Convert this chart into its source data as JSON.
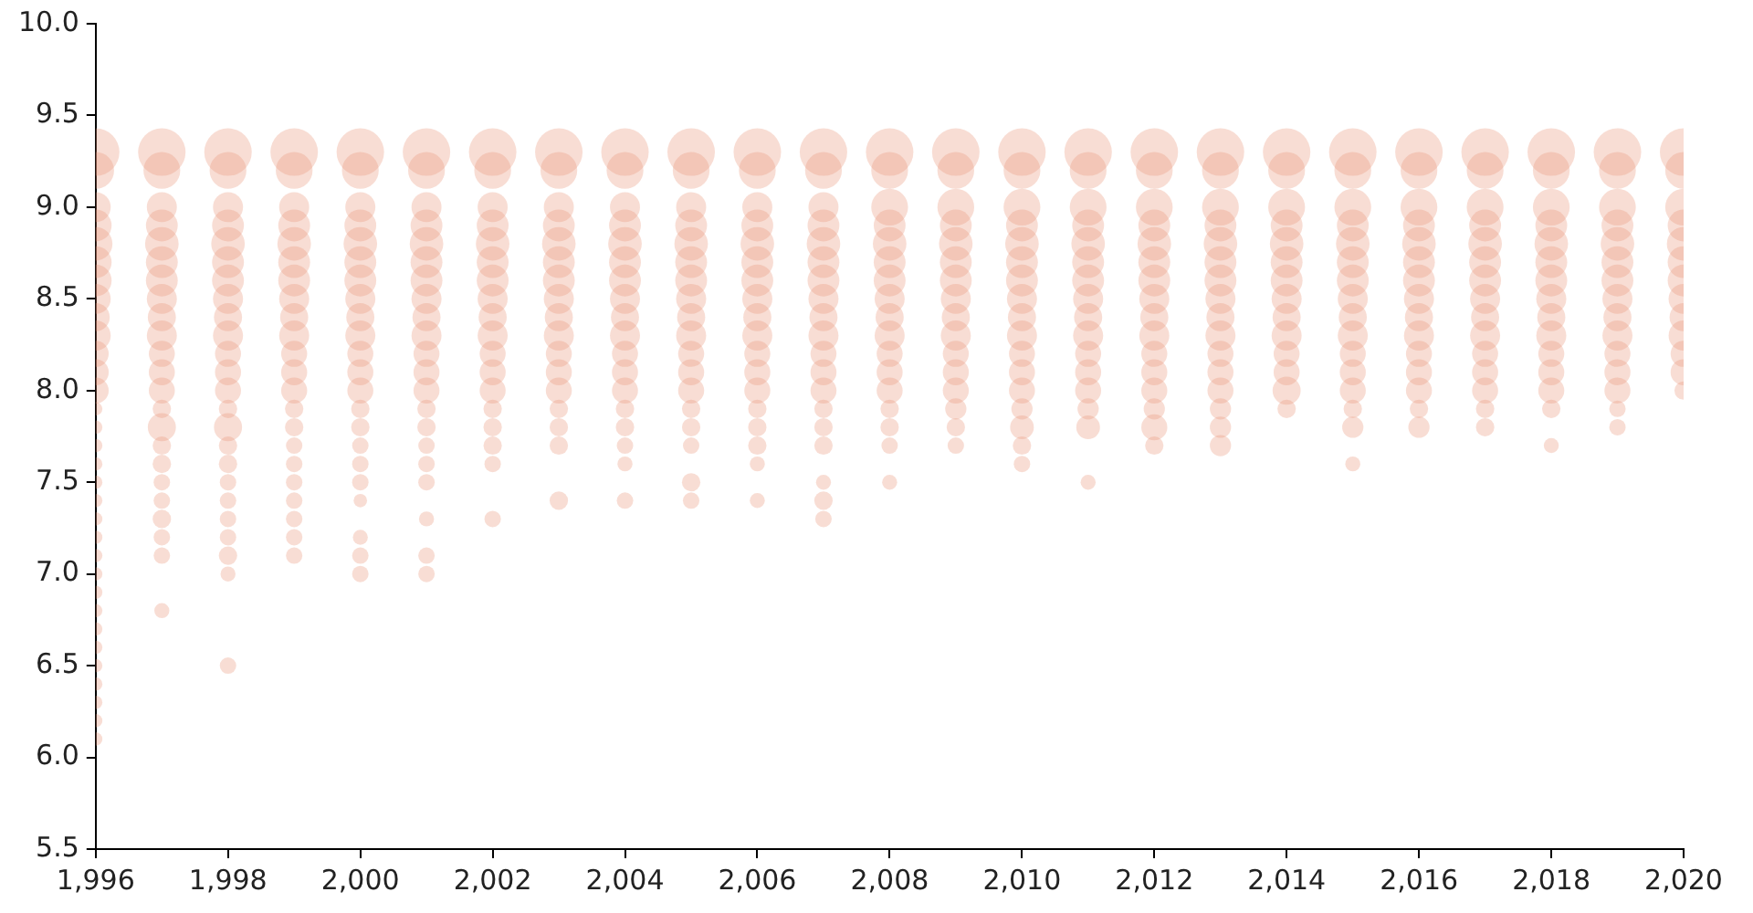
{
  "chart_data": {
    "type": "bubble",
    "xlim": [
      1996,
      2020
    ],
    "xticks": [
      {
        "value": 1996,
        "label": "1,996"
      },
      {
        "value": 1998,
        "label": "1,998"
      },
      {
        "value": 2000,
        "label": "2,000"
      },
      {
        "value": 2002,
        "label": "2,002"
      },
      {
        "value": 2004,
        "label": "2,004"
      },
      {
        "value": 2006,
        "label": "2,006"
      },
      {
        "value": 2008,
        "label": "2,008"
      },
      {
        "value": 2010,
        "label": "2,010"
      },
      {
        "value": 2012,
        "label": "2,012"
      },
      {
        "value": 2014,
        "label": "2,014"
      },
      {
        "value": 2016,
        "label": "2,016"
      },
      {
        "value": 2018,
        "label": "2,018"
      },
      {
        "value": 2020,
        "label": "2,020"
      }
    ],
    "ylim": [
      5.5,
      10
    ],
    "yticks": [
      5.5,
      {
        "value": 6,
        "label": "6.0"
      },
      6.5,
      {
        "value": 7,
        "label": "7.0"
      },
      7.5,
      {
        "value": 8,
        "label": "8.0"
      },
      8.5,
      {
        "value": 9,
        "label": "9.0"
      },
      9.5,
      {
        "value": 10,
        "label": "10.0"
      }
    ],
    "grid": false,
    "legend": false,
    "series": [
      {
        "color": "#e8967a",
        "x": [
          1996,
          1996,
          1996,
          1996,
          1996,
          1996,
          1996,
          1996,
          1996,
          1996,
          1996,
          1996,
          1996,
          1996,
          1996,
          1996,
          1996,
          1996,
          1996,
          1996,
          1996,
          1996,
          1996,
          1996,
          1996,
          1996,
          1996,
          1996,
          1996,
          1996,
          1996,
          1996
        ],
        "values": [
          9.3,
          9.2,
          9.0,
          8.9,
          8.8,
          8.7,
          8.6,
          8.5,
          8.4,
          8.3,
          8.2,
          8.1,
          8.0,
          7.9,
          7.8,
          7.7,
          7.6,
          7.5,
          7.4,
          7.3,
          7.2,
          7.1,
          7.0,
          6.9,
          6.8,
          6.7,
          6.6,
          6.5,
          6.4,
          6.3,
          6.2,
          6.1
        ],
        "sizes": [
          1,
          0.6,
          0.4,
          0.45,
          0.5,
          0.45,
          0.45,
          0.4,
          0.35,
          0.4,
          0.3,
          0.3,
          0.3,
          0.08,
          0.08,
          0.08,
          0.08,
          0.08,
          0.08,
          0.08,
          0.08,
          0.08,
          0.08,
          0.08,
          0.08,
          0.08,
          0.08,
          0.08,
          0.08,
          0.08,
          0.08,
          0.08
        ]
      },
      {
        "color": "#e8967a",
        "x": [
          1997,
          1997,
          1997,
          1997,
          1997,
          1997,
          1997,
          1997,
          1997,
          1997,
          1997,
          1997,
          1997,
          1997,
          1997,
          1997,
          1997,
          1997,
          1997,
          1997,
          1997,
          1997,
          1997
        ],
        "values": [
          9.3,
          9.2,
          9.0,
          8.9,
          8.8,
          8.7,
          8.6,
          8.5,
          8.4,
          8.3,
          8.2,
          8.1,
          8.0,
          7.9,
          7.8,
          7.7,
          7.6,
          7.5,
          7.4,
          7.3,
          7.2,
          7.1,
          6.8
        ],
        "sizes": [
          1,
          0.6,
          0.4,
          0.45,
          0.5,
          0.45,
          0.45,
          0.4,
          0.35,
          0.4,
          0.3,
          0.3,
          0.3,
          0.15,
          0.35,
          0.15,
          0.15,
          0.12,
          0.12,
          0.15,
          0.12,
          0.12,
          0.1
        ]
      },
      {
        "color": "#e8967a",
        "x": [
          1998,
          1998,
          1998,
          1998,
          1998,
          1998,
          1998,
          1998,
          1998,
          1998,
          1998,
          1998,
          1998,
          1998,
          1998,
          1998,
          1998,
          1998,
          1998,
          1998,
          1998,
          1998,
          1998,
          1998
        ],
        "values": [
          9.3,
          9.2,
          9.0,
          8.9,
          8.8,
          8.7,
          8.6,
          8.5,
          8.4,
          8.3,
          8.2,
          8.1,
          8.0,
          7.9,
          7.8,
          7.7,
          7.6,
          7.5,
          7.4,
          7.3,
          7.2,
          7.1,
          7.0,
          6.5
        ],
        "sizes": [
          1,
          0.6,
          0.4,
          0.45,
          0.5,
          0.45,
          0.45,
          0.4,
          0.35,
          0.4,
          0.3,
          0.3,
          0.3,
          0.15,
          0.35,
          0.15,
          0.15,
          0.12,
          0.12,
          0.12,
          0.12,
          0.15,
          0.1,
          0.12
        ]
      },
      {
        "color": "#e8967a",
        "x": [
          1999,
          1999,
          1999,
          1999,
          1999,
          1999,
          1999,
          1999,
          1999,
          1999,
          1999,
          1999,
          1999,
          1999,
          1999,
          1999,
          1999,
          1999,
          1999,
          1999,
          1999,
          1999
        ],
        "values": [
          9.3,
          9.2,
          9.0,
          8.9,
          8.8,
          8.7,
          8.6,
          8.5,
          8.4,
          8.3,
          8.2,
          8.1,
          8.0,
          7.9,
          7.8,
          7.7,
          7.6,
          7.5,
          7.4,
          7.3,
          7.2,
          7.1
        ],
        "sizes": [
          1,
          0.6,
          0.4,
          0.45,
          0.5,
          0.45,
          0.45,
          0.4,
          0.35,
          0.4,
          0.3,
          0.3,
          0.3,
          0.15,
          0.15,
          0.12,
          0.12,
          0.12,
          0.12,
          0.12,
          0.12,
          0.12
        ]
      },
      {
        "color": "#e8967a",
        "x": [
          2000,
          2000,
          2000,
          2000,
          2000,
          2000,
          2000,
          2000,
          2000,
          2000,
          2000,
          2000,
          2000,
          2000,
          2000,
          2000,
          2000,
          2000,
          2000,
          2000,
          2000,
          2000
        ],
        "values": [
          9.3,
          9.2,
          9.0,
          8.9,
          8.8,
          8.7,
          8.6,
          8.5,
          8.4,
          8.3,
          8.2,
          8.1,
          8.0,
          7.9,
          7.8,
          7.7,
          7.6,
          7.5,
          7.4,
          7.2,
          7.1,
          7.0
        ],
        "sizes": [
          1,
          0.6,
          0.4,
          0.45,
          0.5,
          0.45,
          0.45,
          0.4,
          0.35,
          0.4,
          0.3,
          0.3,
          0.3,
          0.15,
          0.15,
          0.12,
          0.12,
          0.12,
          0.08,
          0.1,
          0.12,
          0.12
        ]
      },
      {
        "color": "#e8967a",
        "x": [
          2001,
          2001,
          2001,
          2001,
          2001,
          2001,
          2001,
          2001,
          2001,
          2001,
          2001,
          2001,
          2001,
          2001,
          2001,
          2001,
          2001,
          2001,
          2001,
          2001,
          2001
        ],
        "values": [
          9.3,
          9.2,
          9.0,
          8.9,
          8.8,
          8.7,
          8.6,
          8.5,
          8.4,
          8.3,
          8.2,
          8.1,
          8.0,
          7.9,
          7.8,
          7.7,
          7.6,
          7.5,
          7.3,
          7.1,
          7.0
        ],
        "sizes": [
          1,
          0.6,
          0.4,
          0.45,
          0.5,
          0.45,
          0.45,
          0.4,
          0.35,
          0.4,
          0.3,
          0.3,
          0.3,
          0.15,
          0.15,
          0.12,
          0.12,
          0.12,
          0.1,
          0.12,
          0.12
        ]
      },
      {
        "color": "#e8967a",
        "x": [
          2002,
          2002,
          2002,
          2002,
          2002,
          2002,
          2002,
          2002,
          2002,
          2002,
          2002,
          2002,
          2002,
          2002,
          2002,
          2002,
          2002,
          2002
        ],
        "values": [
          9.3,
          9.2,
          9.0,
          8.9,
          8.8,
          8.7,
          8.6,
          8.5,
          8.4,
          8.3,
          8.2,
          8.1,
          8.0,
          7.9,
          7.8,
          7.7,
          7.6,
          7.3
        ],
        "sizes": [
          1,
          0.6,
          0.4,
          0.45,
          0.5,
          0.45,
          0.45,
          0.4,
          0.35,
          0.4,
          0.3,
          0.3,
          0.3,
          0.15,
          0.15,
          0.15,
          0.12,
          0.12
        ]
      },
      {
        "color": "#e8967a",
        "x": [
          2003,
          2003,
          2003,
          2003,
          2003,
          2003,
          2003,
          2003,
          2003,
          2003,
          2003,
          2003,
          2003,
          2003,
          2003,
          2003,
          2003
        ],
        "values": [
          9.3,
          9.2,
          9.0,
          8.9,
          8.8,
          8.7,
          8.6,
          8.5,
          8.4,
          8.3,
          8.2,
          8.1,
          8.0,
          7.9,
          7.8,
          7.7,
          7.4
        ],
        "sizes": [
          1,
          0.6,
          0.4,
          0.45,
          0.5,
          0.45,
          0.45,
          0.4,
          0.35,
          0.4,
          0.3,
          0.3,
          0.3,
          0.15,
          0.15,
          0.15,
          0.15
        ]
      },
      {
        "color": "#e8967a",
        "x": [
          2004,
          2004,
          2004,
          2004,
          2004,
          2004,
          2004,
          2004,
          2004,
          2004,
          2004,
          2004,
          2004,
          2004,
          2004,
          2004,
          2004,
          2004
        ],
        "values": [
          9.3,
          9.2,
          9.0,
          8.9,
          8.8,
          8.7,
          8.6,
          8.5,
          8.4,
          8.3,
          8.2,
          8.1,
          8.0,
          7.9,
          7.8,
          7.7,
          7.6,
          7.4
        ],
        "sizes": [
          1,
          0.6,
          0.4,
          0.45,
          0.5,
          0.45,
          0.45,
          0.4,
          0.35,
          0.4,
          0.3,
          0.3,
          0.3,
          0.15,
          0.15,
          0.12,
          0.1,
          0.12
        ]
      },
      {
        "color": "#e8967a",
        "x": [
          2005,
          2005,
          2005,
          2005,
          2005,
          2005,
          2005,
          2005,
          2005,
          2005,
          2005,
          2005,
          2005,
          2005,
          2005,
          2005,
          2005,
          2005
        ],
        "values": [
          9.3,
          9.2,
          9.0,
          8.9,
          8.8,
          8.7,
          8.6,
          8.5,
          8.4,
          8.3,
          8.2,
          8.1,
          8.0,
          7.9,
          7.8,
          7.7,
          7.5,
          7.4
        ],
        "sizes": [
          1,
          0.6,
          0.4,
          0.45,
          0.5,
          0.45,
          0.45,
          0.4,
          0.35,
          0.4,
          0.3,
          0.3,
          0.3,
          0.15,
          0.15,
          0.12,
          0.15,
          0.12
        ]
      },
      {
        "color": "#e8967a",
        "x": [
          2006,
          2006,
          2006,
          2006,
          2006,
          2006,
          2006,
          2006,
          2006,
          2006,
          2006,
          2006,
          2006,
          2006,
          2006,
          2006,
          2006,
          2006
        ],
        "values": [
          9.3,
          9.2,
          9.0,
          8.9,
          8.8,
          8.7,
          8.6,
          8.5,
          8.4,
          8.3,
          8.2,
          8.1,
          8.0,
          7.9,
          7.8,
          7.7,
          7.6,
          7.4
        ],
        "sizes": [
          1,
          0.6,
          0.4,
          0.45,
          0.5,
          0.45,
          0.45,
          0.4,
          0.35,
          0.4,
          0.3,
          0.3,
          0.3,
          0.15,
          0.15,
          0.15,
          0.1,
          0.1
        ]
      },
      {
        "color": "#e8967a",
        "x": [
          2007,
          2007,
          2007,
          2007,
          2007,
          2007,
          2007,
          2007,
          2007,
          2007,
          2007,
          2007,
          2007,
          2007,
          2007,
          2007,
          2007,
          2007,
          2007
        ],
        "values": [
          9.3,
          9.2,
          9.0,
          8.9,
          8.8,
          8.7,
          8.6,
          8.5,
          8.4,
          8.3,
          8.2,
          8.1,
          8.0,
          7.9,
          7.8,
          7.7,
          7.5,
          7.4,
          7.3
        ],
        "sizes": [
          1,
          0.6,
          0.4,
          0.45,
          0.5,
          0.45,
          0.45,
          0.4,
          0.35,
          0.4,
          0.3,
          0.3,
          0.3,
          0.15,
          0.15,
          0.15,
          0.1,
          0.15,
          0.12
        ]
      },
      {
        "color": "#e8967a",
        "x": [
          2008,
          2008,
          2008,
          2008,
          2008,
          2008,
          2008,
          2008,
          2008,
          2008,
          2008,
          2008,
          2008,
          2008,
          2008,
          2008,
          2008
        ],
        "values": [
          9.3,
          9.2,
          9.0,
          8.9,
          8.8,
          8.7,
          8.6,
          8.5,
          8.4,
          8.3,
          8.2,
          8.1,
          8.0,
          7.9,
          7.8,
          7.7,
          7.5
        ],
        "sizes": [
          1,
          0.6,
          0.6,
          0.45,
          0.5,
          0.45,
          0.45,
          0.4,
          0.35,
          0.4,
          0.3,
          0.3,
          0.3,
          0.15,
          0.15,
          0.12,
          0.1
        ]
      },
      {
        "color": "#e8967a",
        "x": [
          2009,
          2009,
          2009,
          2009,
          2009,
          2009,
          2009,
          2009,
          2009,
          2009,
          2009,
          2009,
          2009,
          2009,
          2009,
          2009
        ],
        "values": [
          9.3,
          9.2,
          9.0,
          8.9,
          8.8,
          8.7,
          8.6,
          8.5,
          8.4,
          8.3,
          8.2,
          8.1,
          8.0,
          7.9,
          7.8,
          7.7
        ],
        "sizes": [
          1,
          0.6,
          0.6,
          0.45,
          0.5,
          0.45,
          0.45,
          0.4,
          0.35,
          0.4,
          0.3,
          0.3,
          0.3,
          0.2,
          0.15,
          0.12
        ]
      },
      {
        "color": "#e8967a",
        "x": [
          2010,
          2010,
          2010,
          2010,
          2010,
          2010,
          2010,
          2010,
          2010,
          2010,
          2010,
          2010,
          2010,
          2010,
          2010,
          2010,
          2010
        ],
        "values": [
          9.3,
          9.2,
          9.0,
          8.9,
          8.8,
          8.7,
          8.6,
          8.5,
          8.4,
          8.3,
          8.2,
          8.1,
          8.0,
          7.9,
          7.8,
          7.7,
          7.6
        ],
        "sizes": [
          1,
          0.6,
          0.6,
          0.45,
          0.5,
          0.45,
          0.45,
          0.4,
          0.35,
          0.4,
          0.3,
          0.3,
          0.3,
          0.2,
          0.25,
          0.15,
          0.12
        ]
      },
      {
        "color": "#e8967a",
        "x": [
          2011,
          2011,
          2011,
          2011,
          2011,
          2011,
          2011,
          2011,
          2011,
          2011,
          2011,
          2011,
          2011,
          2011,
          2011,
          2011
        ],
        "values": [
          9.3,
          9.2,
          9.0,
          8.9,
          8.8,
          8.7,
          8.6,
          8.5,
          8.4,
          8.3,
          8.2,
          8.1,
          8.0,
          7.9,
          7.8,
          7.5
        ],
        "sizes": [
          1,
          0.6,
          0.6,
          0.45,
          0.5,
          0.45,
          0.45,
          0.4,
          0.35,
          0.4,
          0.3,
          0.3,
          0.3,
          0.2,
          0.25,
          0.1
        ]
      },
      {
        "color": "#e8967a",
        "x": [
          2012,
          2012,
          2012,
          2012,
          2012,
          2012,
          2012,
          2012,
          2012,
          2012,
          2012,
          2012,
          2012,
          2012,
          2012,
          2012
        ],
        "values": [
          9.3,
          9.2,
          9.0,
          8.9,
          8.8,
          8.7,
          8.6,
          8.5,
          8.4,
          8.3,
          8.2,
          8.1,
          8.0,
          7.9,
          7.8,
          7.7
        ],
        "sizes": [
          1,
          0.6,
          0.6,
          0.45,
          0.5,
          0.45,
          0.45,
          0.4,
          0.35,
          0.4,
          0.3,
          0.3,
          0.3,
          0.2,
          0.3,
          0.15
        ]
      },
      {
        "color": "#e8967a",
        "x": [
          2013,
          2013,
          2013,
          2013,
          2013,
          2013,
          2013,
          2013,
          2013,
          2013,
          2013,
          2013,
          2013,
          2013,
          2013,
          2013
        ],
        "values": [
          9.3,
          9.2,
          9.0,
          8.9,
          8.8,
          8.7,
          8.6,
          8.5,
          8.4,
          8.3,
          8.2,
          8.1,
          8.0,
          7.9,
          7.8,
          7.7
        ],
        "sizes": [
          1,
          0.6,
          0.6,
          0.45,
          0.5,
          0.45,
          0.45,
          0.4,
          0.35,
          0.4,
          0.3,
          0.3,
          0.3,
          0.2,
          0.2,
          0.2
        ]
      },
      {
        "color": "#e8967a",
        "x": [
          2014,
          2014,
          2014,
          2014,
          2014,
          2014,
          2014,
          2014,
          2014,
          2014,
          2014,
          2014,
          2014,
          2014
        ],
        "values": [
          9.3,
          9.2,
          9.0,
          8.9,
          8.8,
          8.7,
          8.6,
          8.5,
          8.4,
          8.3,
          8.2,
          8.1,
          8.0,
          7.9
        ],
        "sizes": [
          1,
          0.6,
          0.6,
          0.45,
          0.5,
          0.45,
          0.45,
          0.4,
          0.35,
          0.4,
          0.3,
          0.3,
          0.35,
          0.15
        ]
      },
      {
        "color": "#e8967a",
        "x": [
          2015,
          2015,
          2015,
          2015,
          2015,
          2015,
          2015,
          2015,
          2015,
          2015,
          2015,
          2015,
          2015,
          2015,
          2015,
          2015
        ],
        "values": [
          9.3,
          9.2,
          9.0,
          8.9,
          8.8,
          8.7,
          8.6,
          8.5,
          8.4,
          8.3,
          8.2,
          8.1,
          8.0,
          7.9,
          7.8,
          7.6
        ],
        "sizes": [
          1,
          0.6,
          0.6,
          0.45,
          0.5,
          0.45,
          0.45,
          0.4,
          0.35,
          0.4,
          0.3,
          0.3,
          0.3,
          0.15,
          0.2,
          0.1
        ]
      },
      {
        "color": "#e8967a",
        "x": [
          2016,
          2016,
          2016,
          2016,
          2016,
          2016,
          2016,
          2016,
          2016,
          2016,
          2016,
          2016,
          2016,
          2016,
          2016
        ],
        "values": [
          9.3,
          9.2,
          9.0,
          8.9,
          8.8,
          8.7,
          8.6,
          8.5,
          8.4,
          8.3,
          8.2,
          8.1,
          8.0,
          7.9,
          7.8
        ],
        "sizes": [
          1,
          0.6,
          0.6,
          0.45,
          0.5,
          0.45,
          0.45,
          0.4,
          0.35,
          0.4,
          0.3,
          0.3,
          0.3,
          0.15,
          0.2
        ]
      },
      {
        "color": "#e8967a",
        "x": [
          2017,
          2017,
          2017,
          2017,
          2017,
          2017,
          2017,
          2017,
          2017,
          2017,
          2017,
          2017,
          2017,
          2017,
          2017
        ],
        "values": [
          9.3,
          9.2,
          9.0,
          8.9,
          8.8,
          8.7,
          8.6,
          8.5,
          8.4,
          8.3,
          8.2,
          8.1,
          8.0,
          7.9,
          7.8
        ],
        "sizes": [
          1,
          0.6,
          0.6,
          0.45,
          0.5,
          0.45,
          0.45,
          0.4,
          0.35,
          0.4,
          0.3,
          0.3,
          0.3,
          0.15,
          0.15
        ]
      },
      {
        "color": "#e8967a",
        "x": [
          2018,
          2018,
          2018,
          2018,
          2018,
          2018,
          2018,
          2018,
          2018,
          2018,
          2018,
          2018,
          2018,
          2018,
          2018
        ],
        "values": [
          9.3,
          9.2,
          9.0,
          8.9,
          8.8,
          8.7,
          8.6,
          8.5,
          8.4,
          8.3,
          8.2,
          8.1,
          8.0,
          7.9,
          7.7
        ],
        "sizes": [
          1,
          0.6,
          0.6,
          0.45,
          0.5,
          0.45,
          0.45,
          0.4,
          0.35,
          0.4,
          0.3,
          0.3,
          0.3,
          0.15,
          0.1
        ]
      },
      {
        "color": "#e8967a",
        "x": [
          2019,
          2019,
          2019,
          2019,
          2019,
          2019,
          2019,
          2019,
          2019,
          2019,
          2019,
          2019,
          2019,
          2019,
          2019
        ],
        "values": [
          9.3,
          9.2,
          9.0,
          8.9,
          8.8,
          8.7,
          8.6,
          8.5,
          8.4,
          8.3,
          8.2,
          8.1,
          8.0,
          7.9,
          7.8
        ],
        "sizes": [
          1,
          0.6,
          0.6,
          0.45,
          0.5,
          0.45,
          0.45,
          0.4,
          0.35,
          0.4,
          0.3,
          0.3,
          0.3,
          0.12,
          0.12
        ]
      },
      {
        "color": "#e8967a",
        "x": [
          2020,
          2020,
          2020,
          2020,
          2020,
          2020,
          2020,
          2020,
          2020,
          2020,
          2020,
          2020,
          2020
        ],
        "values": [
          9.3,
          9.2,
          9.0,
          8.9,
          8.8,
          8.7,
          8.6,
          8.5,
          8.4,
          8.3,
          8.2,
          8.1,
          8.0
        ],
        "sizes": [
          1,
          0.6,
          0.6,
          0.45,
          0.5,
          0.45,
          0.45,
          0.4,
          0.35,
          0.4,
          0.3,
          0.3,
          0.15
        ]
      }
    ]
  }
}
